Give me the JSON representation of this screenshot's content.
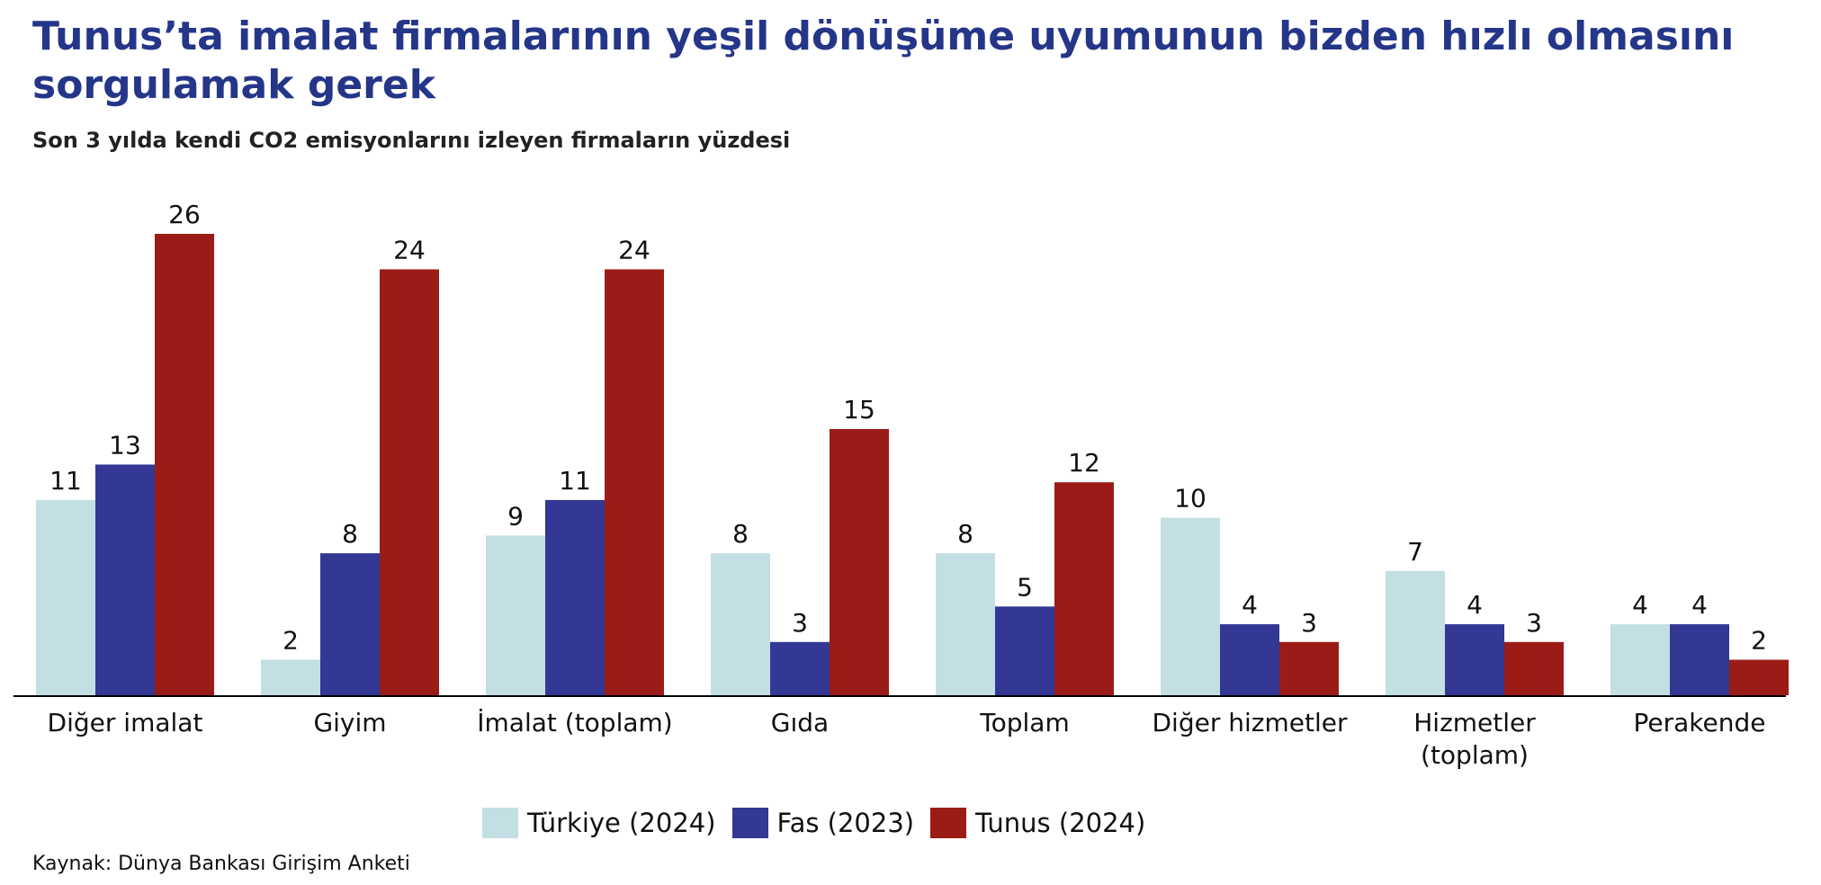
{
  "header": {
    "title": "Tunus’ta imalat firmalarının yeşil dönüşüme uyumunun bizden hızlı olmasını sorgulamak gerek",
    "subtitle": "Son 3 yılda kendi CO2 emisyonlarını izleyen firmaların yüzdesi"
  },
  "source": "Kaynak: Dünya Bankası Girişim Anketi",
  "chart_data": {
    "type": "bar",
    "categories": [
      [
        "Diğer imalat"
      ],
      [
        "Giyim"
      ],
      [
        "İmalat (toplam)"
      ],
      [
        "Gıda"
      ],
      [
        "Toplam"
      ],
      [
        "Diğer hizmetler"
      ],
      [
        "Hizmetler",
        "(toplam)"
      ],
      [
        "Perakende"
      ]
    ],
    "series": [
      {
        "name": "Türkiye (2024)",
        "color": "#c2dfe3",
        "values": [
          11,
          2,
          9,
          8,
          8,
          10,
          7,
          4
        ]
      },
      {
        "name": "Fas (2023)",
        "color": "#323894",
        "values": [
          13,
          8,
          11,
          3,
          5,
          4,
          4,
          4
        ]
      },
      {
        "name": "Tunus (2024)",
        "color": "#9b1c16",
        "values": [
          26,
          24,
          24,
          15,
          12,
          3,
          3,
          2
        ]
      }
    ],
    "ylim": [
      0,
      26
    ],
    "legend_position": "bottom",
    "grid": false
  }
}
